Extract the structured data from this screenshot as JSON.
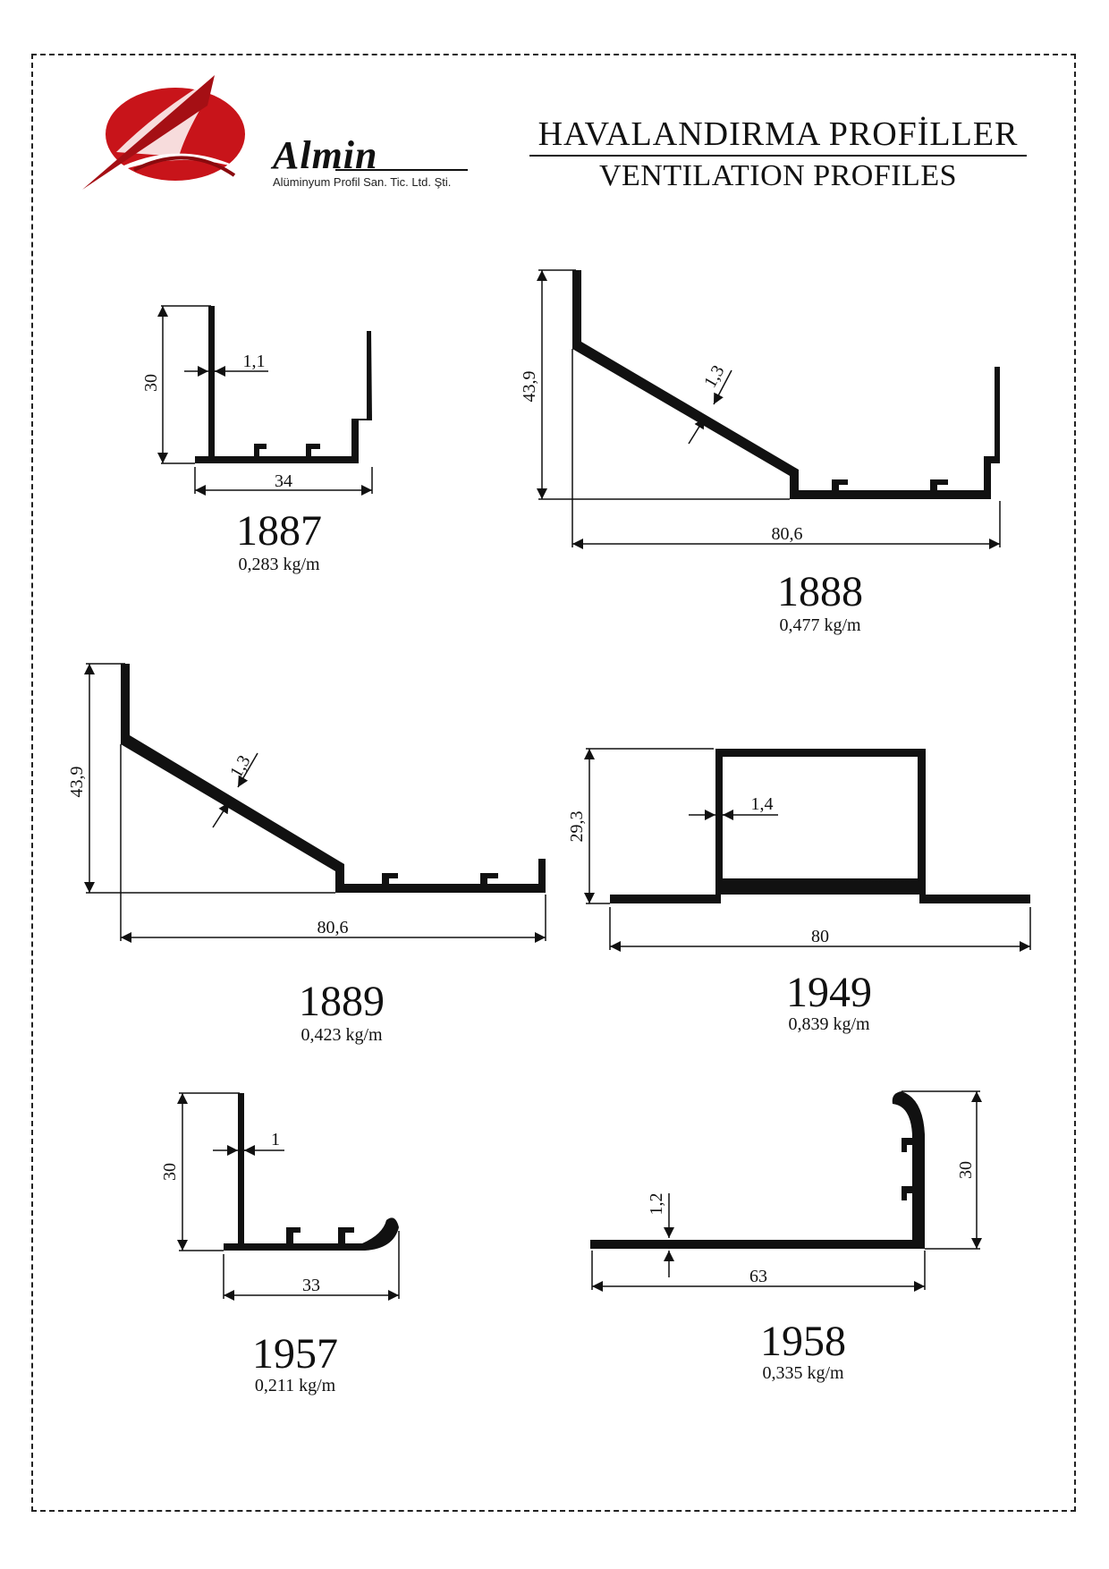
{
  "header": {
    "title_tr": "HAVALANDIRMA  PROFİLLER",
    "title_en": "VENTILATION PROFILES"
  },
  "logo": {
    "name": "Almin",
    "subtitle": "Alüminyum Profil San. Tic. Ltd. Şti.",
    "colors": {
      "primary": "#c8141a",
      "dark": "#8a0a0e"
    }
  },
  "profiles": [
    {
      "code": "1887",
      "weight": "0,283 kg/m",
      "dims": {
        "height": "30",
        "thickness": "1,1",
        "width": "34"
      }
    },
    {
      "code": "1888",
      "weight": "0,477 kg/m",
      "dims": {
        "height": "43,9",
        "thickness": "1,3",
        "width": "80,6"
      }
    },
    {
      "code": "1889",
      "weight": "0,423 kg/m",
      "dims": {
        "height": "43,9",
        "thickness": "1,3",
        "width": "80,6"
      }
    },
    {
      "code": "1949",
      "weight": "0,839 kg/m",
      "dims": {
        "height": "29,3",
        "thickness": "1,4",
        "width": "80"
      }
    },
    {
      "code": "1957",
      "weight": "0,211 kg/m",
      "dims": {
        "height": "30",
        "thickness": "1",
        "width": "33"
      }
    },
    {
      "code": "1958",
      "weight": "0,335 kg/m",
      "dims": {
        "height": "30",
        "thickness": "1,2",
        "width": "63"
      }
    }
  ]
}
